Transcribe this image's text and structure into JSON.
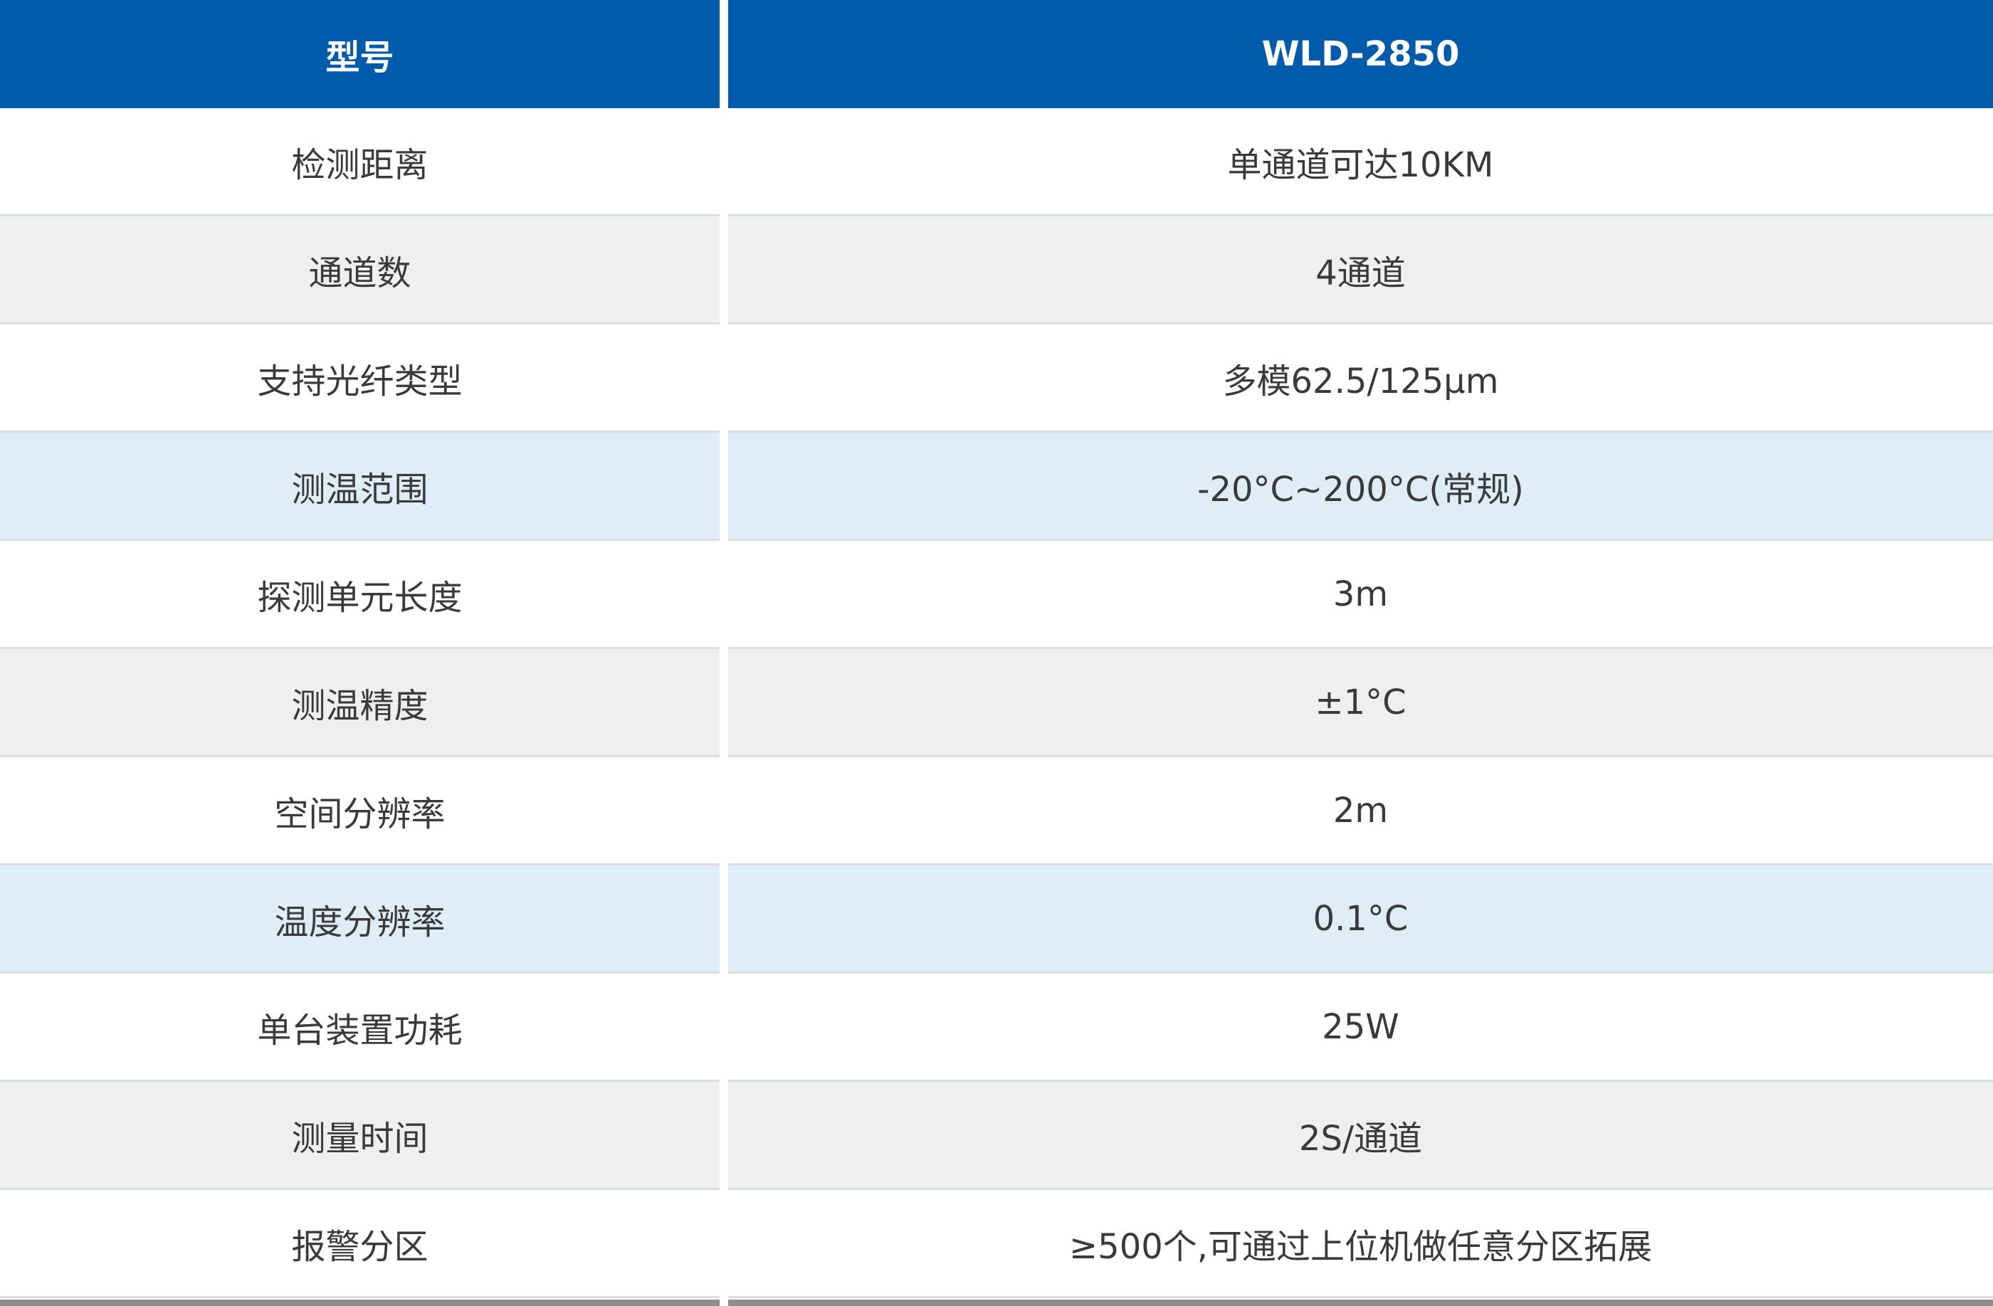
{
  "table": {
    "header": [
      "型号",
      "WLD-2850"
    ],
    "rows": [
      [
        "检测距离",
        "单通道可达10KM"
      ],
      [
        "通道数",
        "4通道"
      ],
      [
        "支持光纤类型",
        "多模62.5/125μm"
      ],
      [
        "测温范围",
        "-20°C~200°C(常规)"
      ],
      [
        "探测单元长度",
        "3m"
      ],
      [
        "测温精度",
        "±1°C"
      ],
      [
        "空间分辨率",
        "2m"
      ],
      [
        "温度分辨率",
        "0.1°C"
      ],
      [
        "单台装置功耗",
        "25W"
      ],
      [
        "测量时间",
        "2S/通道"
      ],
      [
        "报警分区",
        "≥500个,可通过上位机做任意分区拓展"
      ]
    ]
  }
}
